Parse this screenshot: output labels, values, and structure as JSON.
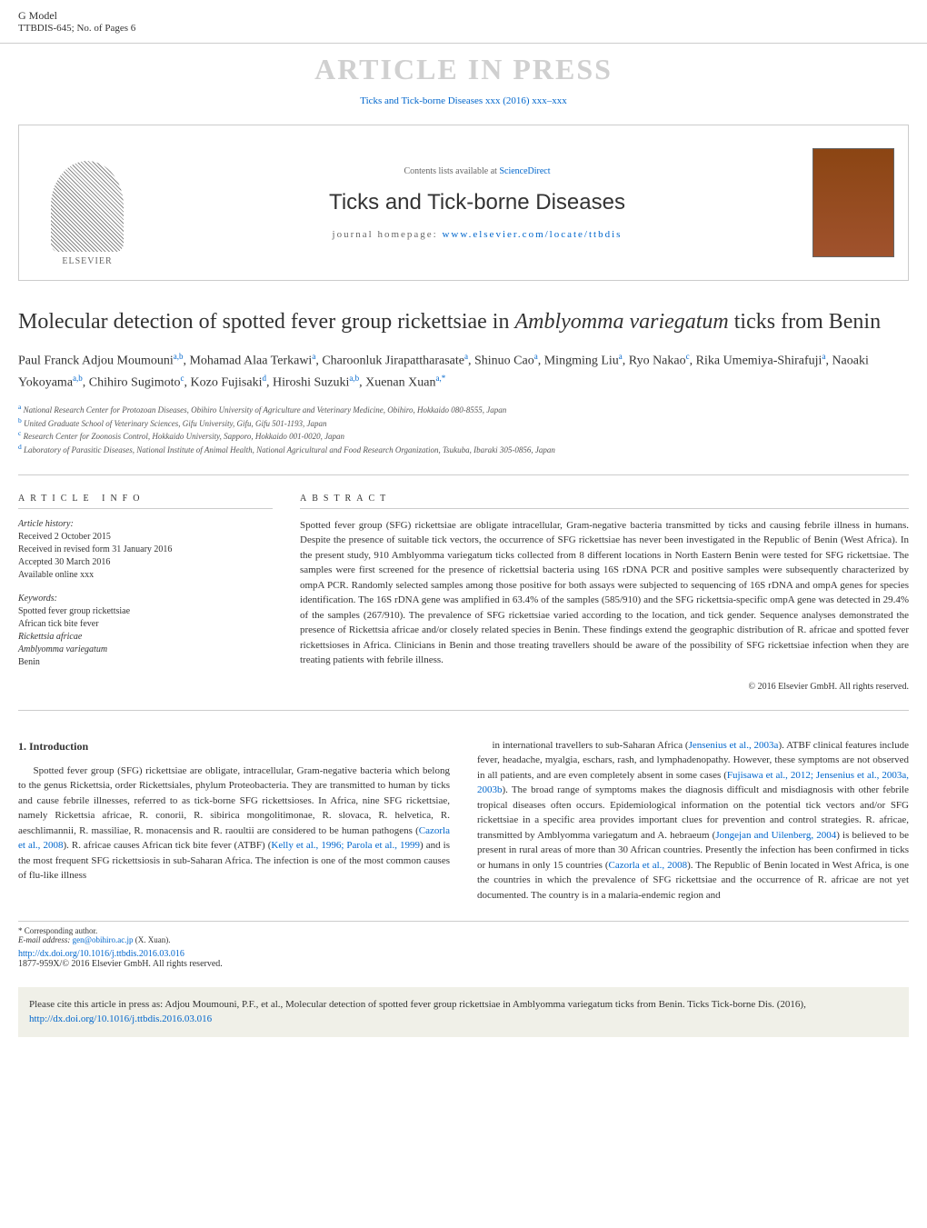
{
  "header": {
    "gmodel": "G Model",
    "article_id": "TTBDIS-645;   No. of Pages 6",
    "press_banner": "ARTICLE IN PRESS",
    "journal_link": "Ticks and Tick-borne Diseases xxx (2016) xxx–xxx"
  },
  "journal": {
    "contents_text": "Contents lists available at ",
    "sciencedirect": "ScienceDirect",
    "name": "Ticks and Tick-borne Diseases",
    "homepage_label": "journal homepage: ",
    "homepage_link": "www.elsevier.com/locate/ttbdis",
    "publisher": "ELSEVIER"
  },
  "title": {
    "text_part1": "Molecular detection of spotted fever group rickettsiae in ",
    "text_italic1": "Amblyomma variegatum",
    "text_part2": " ticks from Benin"
  },
  "authors": {
    "list": "Paul Franck Adjou Moumouni",
    "a1_sup": "a,b",
    "a2": ", Mohamad Alaa Terkawi",
    "a2_sup": "a",
    "a3": ", Charoonluk Jirapattharasate",
    "a3_sup": "a",
    "a4": ", Shinuo Cao",
    "a4_sup": "a",
    "a5": ", Mingming Liu",
    "a5_sup": "a",
    "a6": ", Ryo Nakao",
    "a6_sup": "c",
    "a7": ", Rika Umemiya-Shirafuji",
    "a7_sup": "a",
    "a8": ", Naoaki Yokoyama",
    "a8_sup": "a,b",
    "a9": ", Chihiro Sugimoto",
    "a9_sup": "c",
    "a10": ", Kozo Fujisaki",
    "a10_sup": "d",
    "a11": ", Hiroshi Suzuki",
    "a11_sup": "a,b",
    "a12": ", Xuenan Xuan",
    "a12_sup": "a,*"
  },
  "affiliations": {
    "a_ref": "a",
    "a": " National Research Center for Protozoan Diseases, Obihiro University of Agriculture and Veterinary Medicine, Obihiro, Hokkaido 080-8555, Japan",
    "b_ref": "b",
    "b": " United Graduate School of Veterinary Sciences, Gifu University, Gifu, Gifu 501-1193, Japan",
    "c_ref": "c",
    "c": " Research Center for Zoonosis Control, Hokkaido University, Sapporo, Hokkaido 001-0020, Japan",
    "d_ref": "d",
    "d": " Laboratory of Parasitic Diseases, National Institute of Animal Health, National Agricultural and Food Research Organization, Tsukuba, Ibaraki 305-0856, Japan"
  },
  "article_info": {
    "header": "ARTICLE INFO",
    "history_label": "Article history:",
    "received": "Received 2 October 2015",
    "revised": "Received in revised form 31 January 2016",
    "accepted": "Accepted 30 March 2016",
    "online": "Available online xxx",
    "keywords_label": "Keywords:",
    "kw1": "Spotted fever group rickettsiae",
    "kw2": "African tick bite fever",
    "kw3": "Rickettsia africae",
    "kw4": "Amblyomma variegatum",
    "kw5": "Benin"
  },
  "abstract": {
    "header": "ABSTRACT",
    "text": "Spotted fever group (SFG) rickettsiae are obligate intracellular, Gram-negative bacteria transmitted by ticks and causing febrile illness in humans. Despite the presence of suitable tick vectors, the occurrence of SFG rickettsiae has never been investigated in the Republic of Benin (West Africa). In the present study, 910 Amblyomma variegatum ticks collected from 8 different locations in North Eastern Benin were tested for SFG rickettsiae. The samples were first screened for the presence of rickettsial bacteria using 16S rDNA PCR and positive samples were subsequently characterized by ompA PCR. Randomly selected samples among those positive for both assays were subjected to sequencing of 16S rDNA and ompA genes for species identification. The 16S rDNA gene was amplified in 63.4% of the samples (585/910) and the SFG rickettsia-specific ompA gene was detected in 29.4% of the samples (267/910). The prevalence of SFG rickettsiae varied according to the location, and tick gender. Sequence analyses demonstrated the presence of Rickettsia africae and/or closely related species in Benin. These findings extend the geographic distribution of R. africae and spotted fever rickettsioses in Africa. Clinicians in Benin and those treating travellers should be aware of the possibility of SFG rickettsiae infection when they are treating patients with febrile illness.",
    "copyright": "© 2016 Elsevier GmbH. All rights reserved."
  },
  "body": {
    "section_header": "1. Introduction",
    "col1_p1": "Spotted fever group (SFG) rickettsiae are obligate, intracellular, Gram-negative bacteria which belong to the genus Rickettsia, order Rickettsiales, phylum Proteobacteria. They are transmitted to human by ticks and cause febrile illnesses, referred to as tick-borne SFG rickettsioses. In Africa, nine SFG rickettsiae, namely Rickettsia africae, R. conorii, R. sibirica mongolitimonae, R. slovaca, R. helvetica, R. aeschlimannii, R. massiliae, R. monacensis and R. raoultii are considered to be human pathogens (",
    "col1_cite1": "Cazorla et al., 2008",
    "col1_p1b": "). R. africae causes African tick bite fever (ATBF) (",
    "col1_cite2": "Kelly et al., 1996; Parola et al., 1999",
    "col1_p1c": ") and is the most frequent SFG rickettsiosis in sub-Saharan Africa. The infection is one of the most common causes of flu-like illness",
    "col2_p1a": "in international travellers to sub-Saharan Africa (",
    "col2_cite1": "Jensenius et al., 2003a",
    "col2_p1b": "). ATBF clinical features include fever, headache, myalgia, eschars, rash, and lymphadenopathy. However, these symptoms are not observed in all patients, and are even completely absent in some cases (",
    "col2_cite2": "Fujisawa et al., 2012; Jensenius et al., 2003a, 2003b",
    "col2_p1c": "). The broad range of symptoms makes the diagnosis difficult and misdiagnosis with other febrile tropical diseases often occurs. Epidemiological information on the potential tick vectors and/or SFG rickettsiae in a specific area provides important clues for prevention and control strategies. R. africae, transmitted by Amblyomma variegatum and A. hebraeum (",
    "col2_cite3": "Jongejan and Uilenberg, 2004",
    "col2_p1d": ") is believed to be present in rural areas of more than 30 African countries. Presently the infection has been confirmed in ticks or humans in only 15 countries (",
    "col2_cite4": "Cazorla et al., 2008",
    "col2_p1e": "). The Republic of Benin located in West Africa, is one the countries in which the prevalence of SFG rickettsiae and the occurrence of R. africae are not yet documented. The country is in a malaria-endemic region and"
  },
  "footer": {
    "corresponding": "* Corresponding author.",
    "email_label": "E-mail address: ",
    "email": "gen@obihiro.ac.jp",
    "email_name": " (X. Xuan).",
    "doi_link": "http://dx.doi.org/10.1016/j.ttbdis.2016.03.016",
    "issn": "1877-959X/© 2016 Elsevier GmbH. All rights reserved."
  },
  "cite_box": {
    "text": "Please cite this article in press as: Adjou Moumouni, P.F., et al., Molecular detection of spotted fever group rickettsiae in Amblyomma variegatum ticks from Benin. Ticks Tick-borne Dis. (2016), ",
    "link": "http://dx.doi.org/10.1016/j.ttbdis.2016.03.016"
  }
}
